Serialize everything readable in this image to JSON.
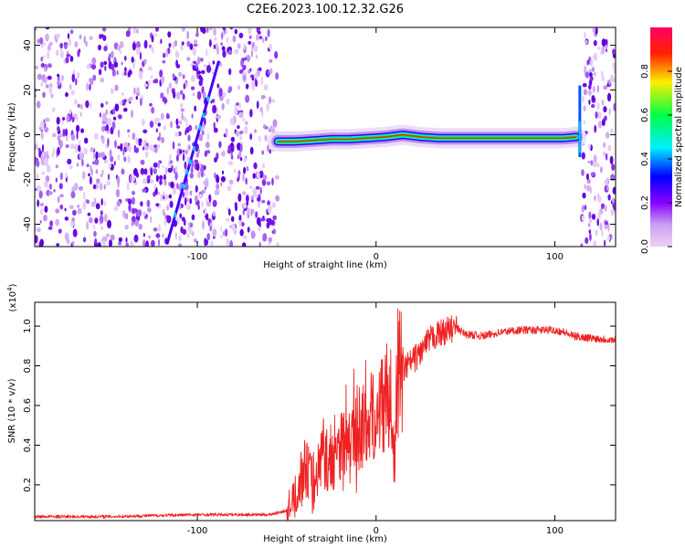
{
  "title": "C2E6.2023.100.12.32.G26",
  "chart_data": [
    {
      "type": "heatmap",
      "xlabel": "Height of straight line (km)",
      "ylabel": "Frequency (Hz)",
      "xlim": [
        -191,
        134
      ],
      "ylim": [
        -50,
        48
      ],
      "xticks": [
        {
          "v": -100,
          "label": "-100"
        },
        {
          "v": 0,
          "label": "0"
        },
        {
          "v": 100,
          "label": "100"
        }
      ],
      "yticks": [
        {
          "v": -40,
          "label": "-40"
        },
        {
          "v": -20,
          "label": "-20"
        },
        {
          "v": 0,
          "label": "0"
        },
        {
          "v": 20,
          "label": "20"
        },
        {
          "v": 40,
          "label": "40"
        }
      ],
      "noise_regions": [
        [
          -191,
          -55
        ],
        [
          115,
          134
        ]
      ],
      "signal_trace": {
        "x": [
          -55,
          -45,
          -35,
          -25,
          -15,
          -5,
          5,
          15,
          25,
          35,
          45,
          55,
          65,
          75,
          85,
          95,
          105,
          112
        ],
        "y": [
          -3,
          -3,
          -2.5,
          -2,
          -2,
          -1.5,
          -1,
          0,
          -1,
          -1.5,
          -1.5,
          -1.5,
          -1.5,
          -1.5,
          -1.5,
          -1.5,
          -1.5,
          -1
        ]
      },
      "diagonal_feature": {
        "x": [
          -117,
          -88
        ],
        "y": [
          -49,
          33
        ]
      }
    },
    {
      "type": "colorbar",
      "label": "Normalized spectral amplitude",
      "range": [
        0,
        1
      ],
      "ticks": [
        {
          "v": 0.0,
          "label": "0.0"
        },
        {
          "v": 0.2,
          "label": "0.2"
        },
        {
          "v": 0.4,
          "label": "0.4"
        },
        {
          "v": 0.6,
          "label": "0.6"
        },
        {
          "v": 0.8,
          "label": "0.8"
        }
      ],
      "colors": [
        "#f0d0f8",
        "#c8a0f0",
        "#8800ff",
        "#0000ff",
        "#00eeff",
        "#00ff44",
        "#ffee00",
        "#ff2200",
        "#ff0066"
      ]
    },
    {
      "type": "line",
      "xlabel": "Height of straight line (km)",
      "ylabel": "SNR (10 * v/v)",
      "scale_label": "(x10",
      "scale_exp": "4",
      "scale_close": ")",
      "xlim": [
        -191,
        134
      ],
      "ylim": [
        0.02,
        1.12
      ],
      "xticks": [
        {
          "v": -100,
          "label": "-100"
        },
        {
          "v": 0,
          "label": "0"
        },
        {
          "v": 100,
          "label": "100"
        }
      ],
      "yticks": [
        {
          "v": 0.2,
          "label": "0.2"
        },
        {
          "v": 0.4,
          "label": "0.4"
        },
        {
          "v": 0.6,
          "label": "0.6"
        },
        {
          "v": 0.8,
          "label": "0.8"
        },
        {
          "v": 1.0,
          "label": "1.0"
        }
      ],
      "color": "#ee2222",
      "series": [
        {
          "name": "SNR",
          "x": [
            -191,
            -150,
            -100,
            -80,
            -60,
            -50,
            -45,
            -40,
            -35,
            -30,
            -25,
            -20,
            -15,
            -10,
            -5,
            0,
            5,
            8,
            10,
            12,
            15,
            20,
            25,
            30,
            35,
            40,
            45,
            50,
            60,
            70,
            80,
            90,
            100,
            105,
            110,
            120,
            134
          ],
          "y": [
            0.04,
            0.04,
            0.05,
            0.05,
            0.05,
            0.07,
            0.15,
            0.3,
            0.22,
            0.35,
            0.3,
            0.42,
            0.38,
            0.5,
            0.48,
            0.6,
            0.62,
            0.7,
            0.25,
            0.75,
            0.78,
            0.82,
            0.87,
            0.93,
            0.96,
            0.98,
            0.99,
            0.96,
            0.95,
            0.97,
            0.98,
            0.98,
            0.98,
            0.97,
            0.95,
            0.94,
            0.93
          ]
        }
      ]
    }
  ]
}
